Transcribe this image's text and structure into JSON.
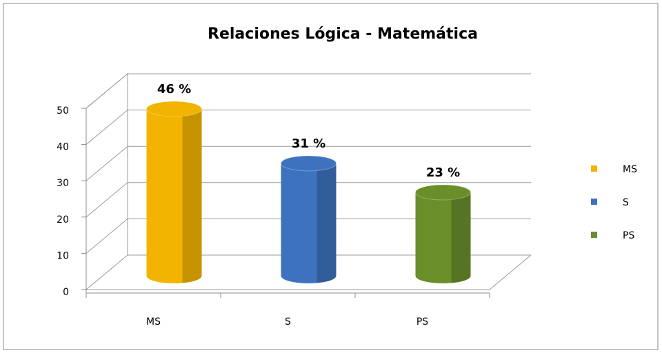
{
  "chart_data": {
    "type": "bar3d",
    "title": "Relaciones Lógica - Matemática",
    "categories": [
      "MS",
      "S",
      "PS"
    ],
    "values": [
      46,
      31,
      23
    ],
    "value_labels": [
      "46 %",
      "31 %",
      "23 %"
    ],
    "colors": [
      "#f2b400",
      "#3d72be",
      "#6a8e2a"
    ],
    "ylim": [
      0,
      50
    ],
    "yticks": [
      0,
      10,
      20,
      30,
      40,
      50
    ],
    "grid": true,
    "legend": "right"
  }
}
